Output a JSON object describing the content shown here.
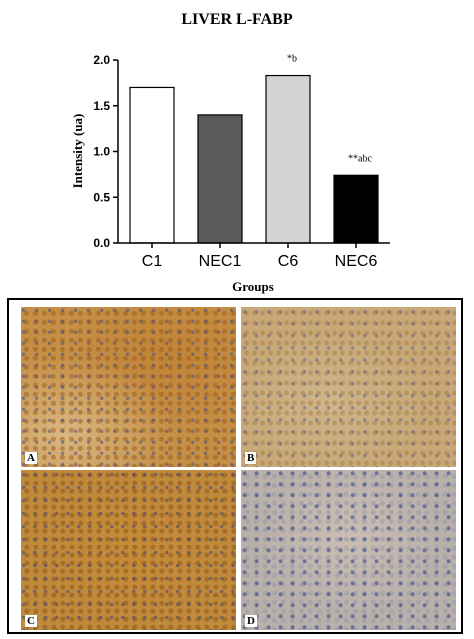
{
  "chart_data": {
    "type": "bar",
    "title": "LIVER L-FABP",
    "xlabel": "Groups",
    "ylabel": "Intensity (ua)",
    "ylim": [
      0,
      2.0
    ],
    "yticks": [
      "0.0",
      "0.5",
      "1.0",
      "1.5",
      "2.0"
    ],
    "ytick_values": [
      0,
      0.5,
      1.0,
      1.5,
      2.0
    ],
    "categories": [
      "C1",
      "NEC1",
      "C6",
      "NEC6"
    ],
    "values": [
      1.7,
      1.4,
      1.83,
      0.74
    ],
    "bar_colors": [
      "#ffffff",
      "#5a5a5a",
      "#d3d3d3",
      "#000000"
    ],
    "annotations": [
      "",
      "",
      "*b",
      "**abc"
    ],
    "grid": false
  },
  "panels": [
    {
      "letter": "A",
      "texture": "tex-a"
    },
    {
      "letter": "B",
      "texture": "tex-b"
    },
    {
      "letter": "C",
      "texture": "tex-c"
    },
    {
      "letter": "D",
      "texture": "tex-d"
    }
  ]
}
